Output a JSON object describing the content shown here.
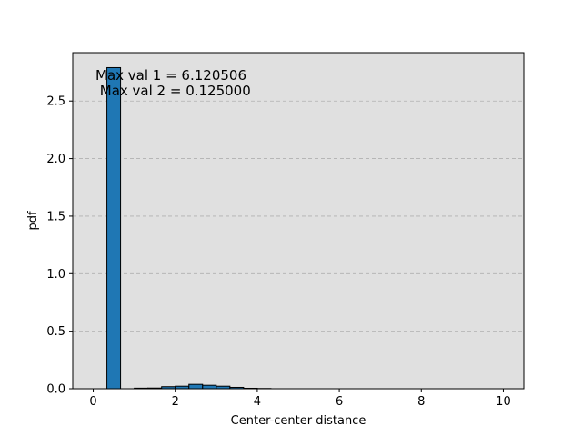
{
  "chart_data": {
    "type": "bar",
    "xlabel": "Center-center distance",
    "ylabel": "pdf",
    "xlim": [
      -0.5,
      10.5
    ],
    "ylim": [
      0,
      2.92
    ],
    "xticks": [
      0,
      2,
      4,
      6,
      8,
      10
    ],
    "xtick_labels": [
      "0",
      "2",
      "4",
      "6",
      "8",
      "10"
    ],
    "yticks": [
      0.0,
      0.5,
      1.0,
      1.5,
      2.0,
      2.5
    ],
    "ytick_labels": [
      "0.0",
      "0.5",
      "1.0",
      "1.5",
      "2.0",
      "2.5"
    ],
    "grid": "y-dashed",
    "bin_width": 0.333,
    "bins": [
      {
        "x0": 0.333,
        "value": 2.79
      },
      {
        "x0": 0.667,
        "value": 0.0
      },
      {
        "x0": 1.0,
        "value": 0.005
      },
      {
        "x0": 1.333,
        "value": 0.006
      },
      {
        "x0": 1.667,
        "value": 0.018
      },
      {
        "x0": 2.0,
        "value": 0.022
      },
      {
        "x0": 2.333,
        "value": 0.038
      },
      {
        "x0": 2.667,
        "value": 0.03
      },
      {
        "x0": 3.0,
        "value": 0.022
      },
      {
        "x0": 3.333,
        "value": 0.012
      },
      {
        "x0": 3.667,
        "value": 0.004
      },
      {
        "x0": 4.0,
        "value": 0.002
      }
    ],
    "annotations": [
      "Max val 1 = 6.120506",
      " Max val 2 = 0.125000"
    ],
    "colors": {
      "bar": "#1f77b4",
      "edge": "#000000",
      "plot_bg": "#e0e0e0",
      "grid": "#b0b0b0"
    }
  }
}
